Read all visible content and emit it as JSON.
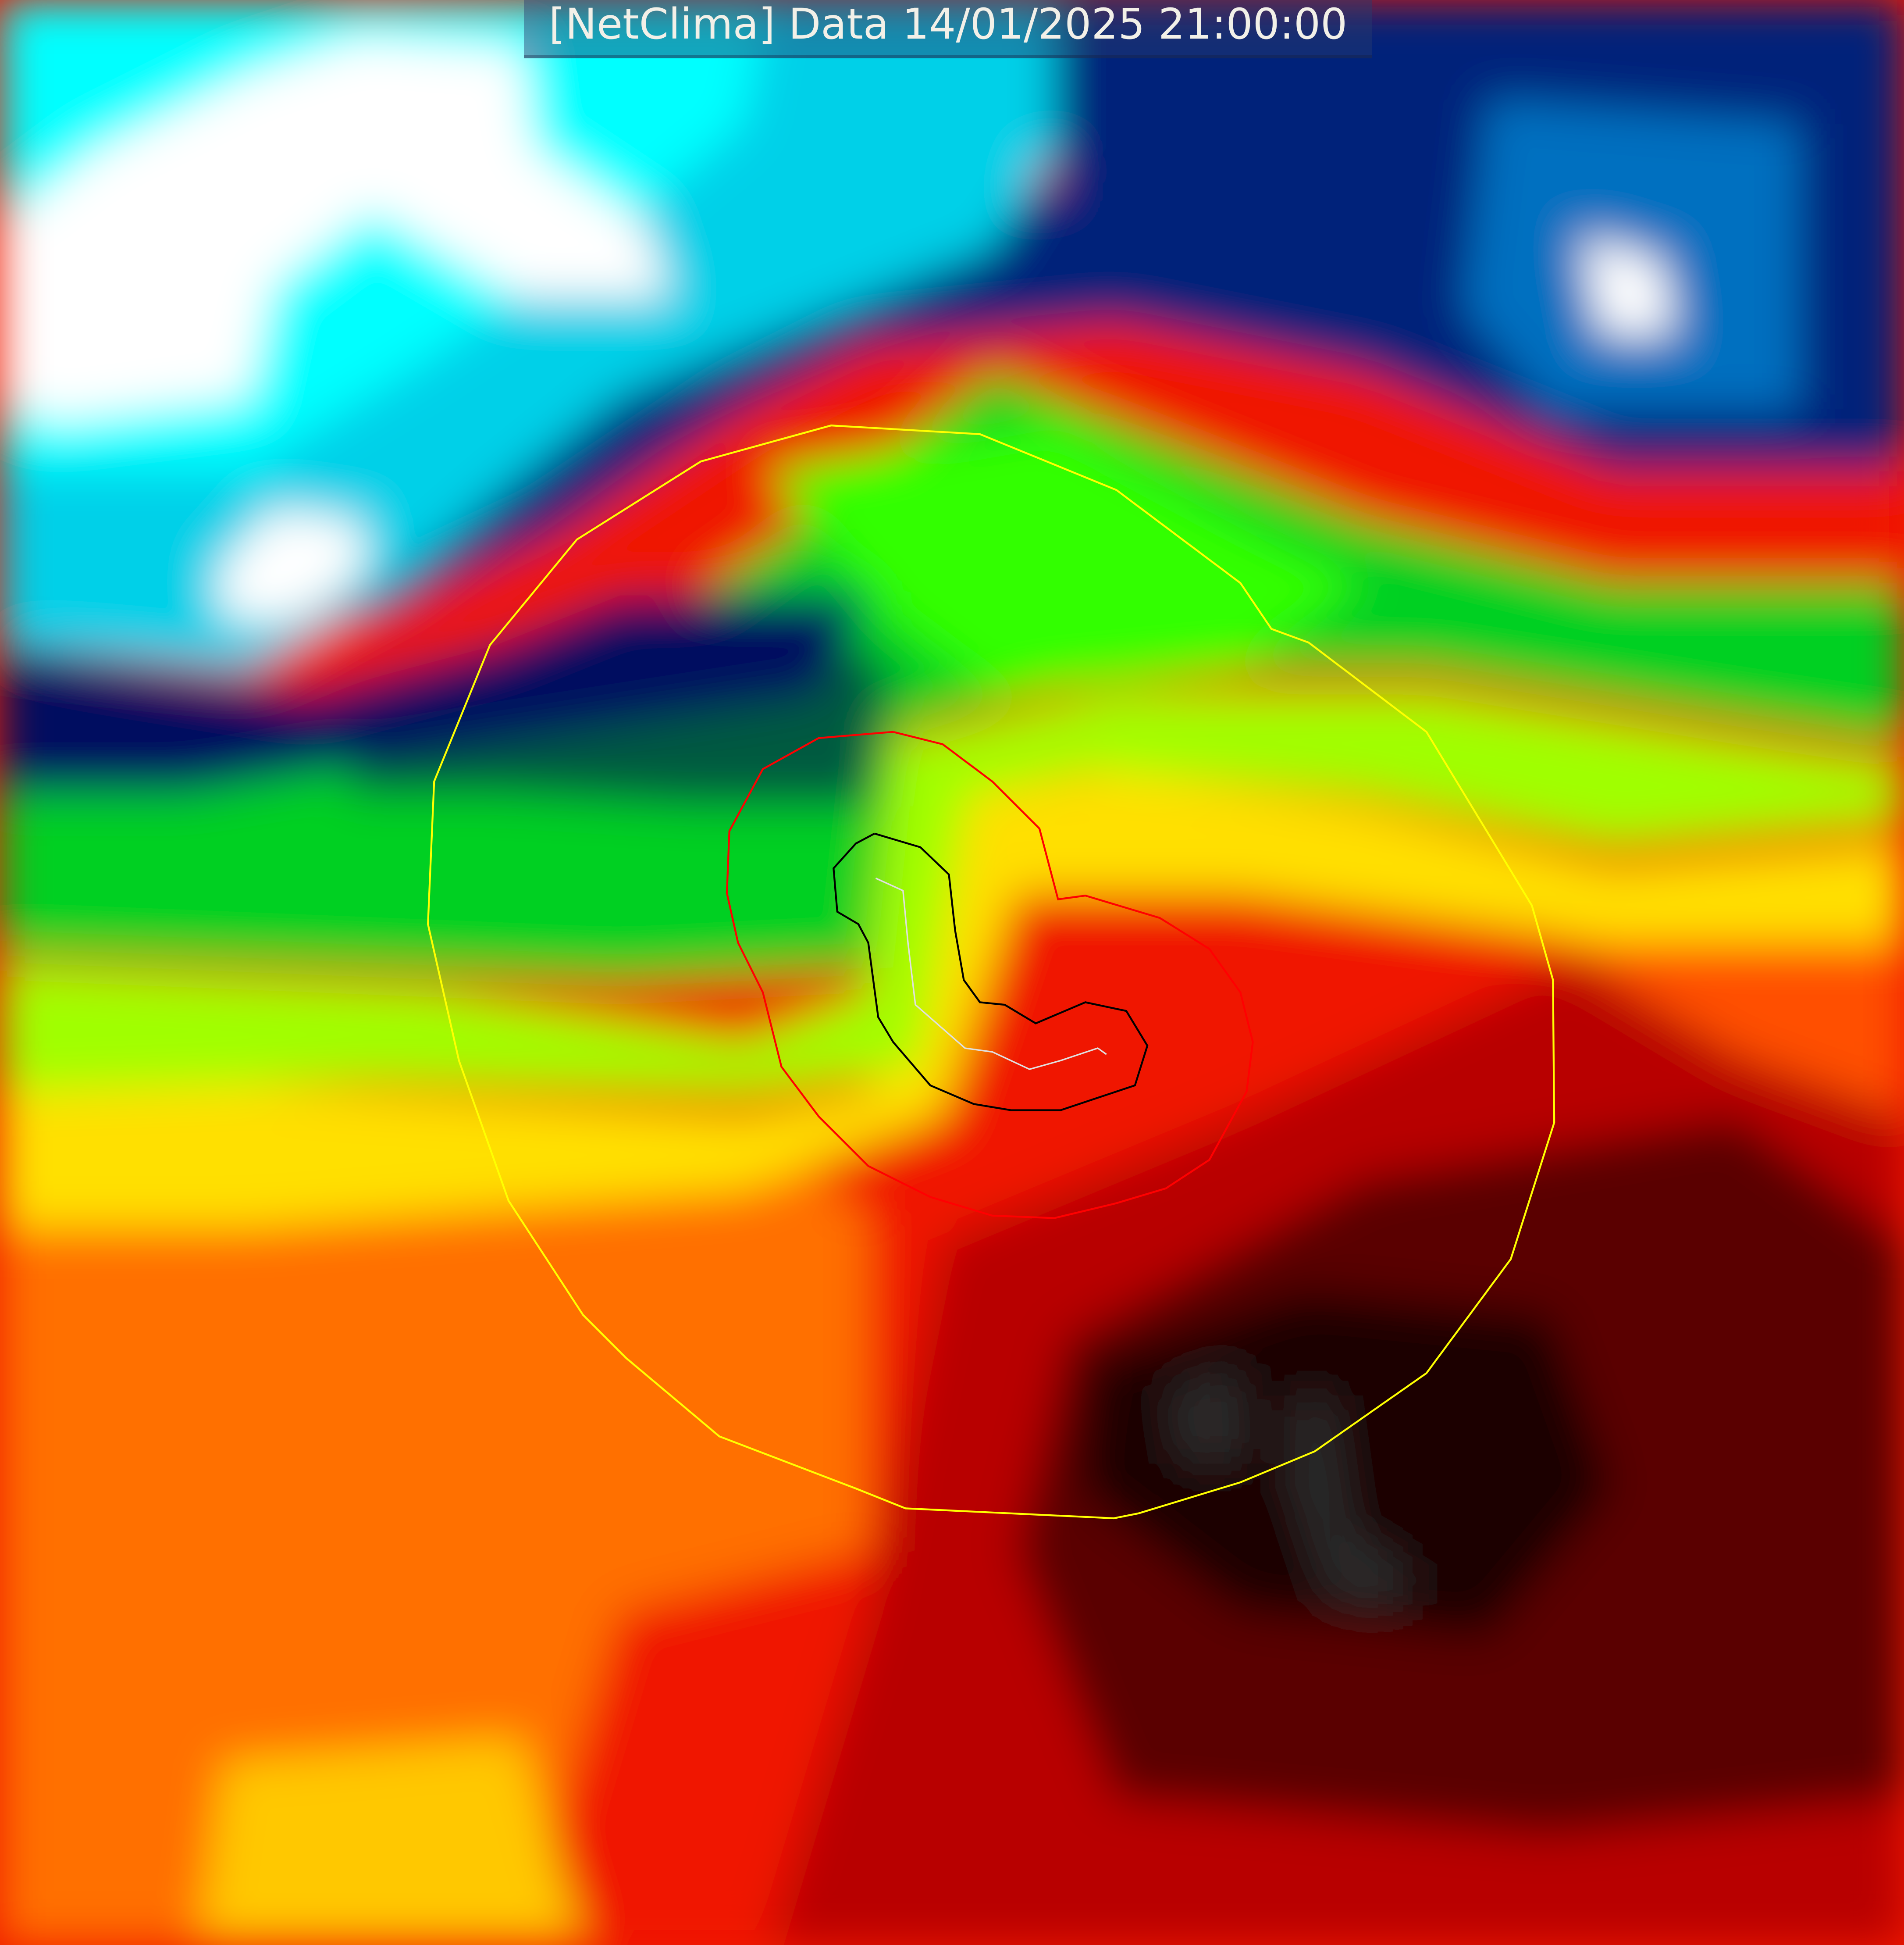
{
  "title": "[NetClima] Data 14/01/2025 21:00:00",
  "palette": {
    "white": "#ffffff",
    "cyan": "#00ffff",
    "light_blue": "#00c8e0",
    "blue": "#0060b0",
    "navy": "#002080",
    "dark_navy": "#000060",
    "dark_green": "#006040",
    "green": "#00c020",
    "bright_green": "#00ff00",
    "yellow_green": "#a0ff00",
    "yellow": "#ffff00",
    "orange_yellow": "#ffc000",
    "orange": "#ff8000",
    "red": "#ff1000",
    "dark_red": "#b00000",
    "maroon": "#600000",
    "black_core": "#200000",
    "gray": "#2a2a2a"
  },
  "contours": {
    "outer_color": "#ffff00",
    "middle_color": "#ff0000",
    "inner_color": "#000000",
    "track_color": "#e0e0e0"
  }
}
